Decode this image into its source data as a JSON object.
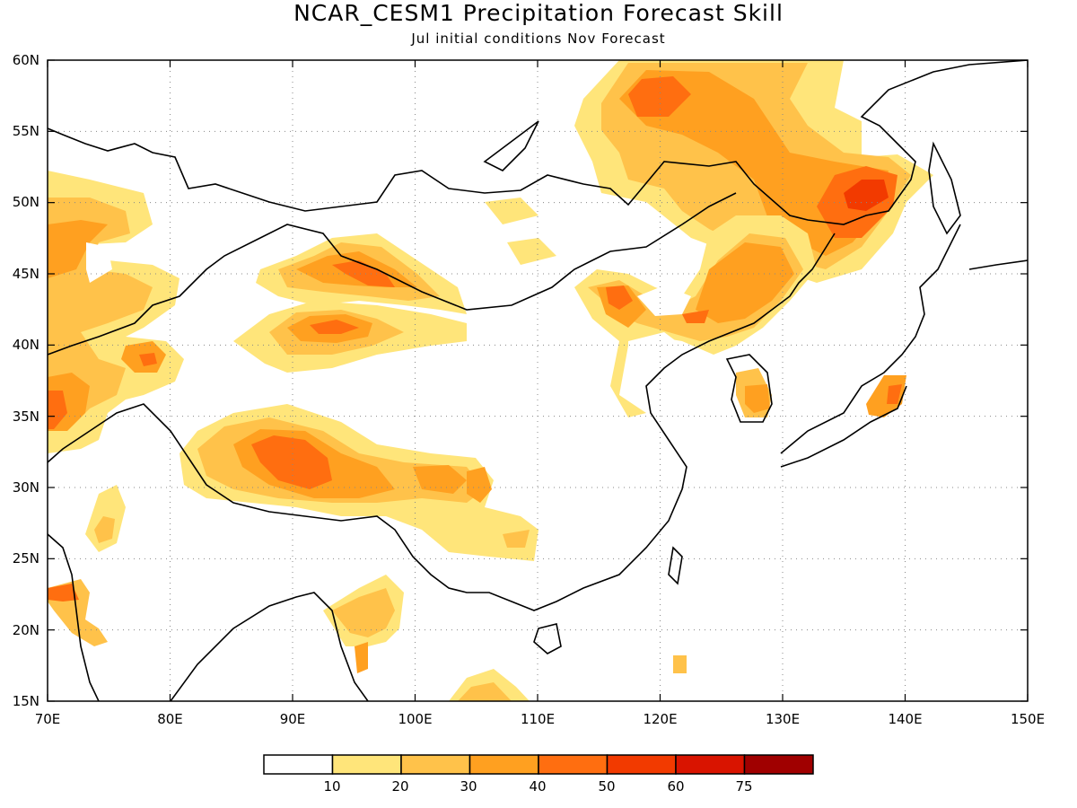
{
  "title": "NCAR_CESM1 Precipitation Forecast Skill",
  "subtitle": "Jul initial conditions  Nov Forecast",
  "map": {
    "lon_range": [
      70,
      150
    ],
    "lat_range": [
      15,
      60
    ],
    "lon_ticks": [
      "70E",
      "80E",
      "90E",
      "100E",
      "110E",
      "120E",
      "130E",
      "140E",
      "150E"
    ],
    "lat_ticks": [
      "15N",
      "20N",
      "25N",
      "30N",
      "35N",
      "40N",
      "45N",
      "50N",
      "55N",
      "60N"
    ],
    "grid": "dotted",
    "coastlines": true
  },
  "legend": {
    "labels": [
      "10",
      "20",
      "30",
      "40",
      "50",
      "60",
      "75"
    ],
    "colors": [
      "#ffffff",
      "#ffe57a",
      "#ffc24a",
      "#ffa020",
      "#ff6e10",
      "#f23a00",
      "#d91400",
      "#a00000"
    ]
  },
  "chart_data": {
    "type": "heatmap",
    "title": "NCAR_CESM1 Precipitation Forecast Skill",
    "subtitle": "Jul initial conditions  Nov Forecast",
    "xlabel": "",
    "ylabel": "",
    "xlim": [
      70,
      150
    ],
    "ylim": [
      15,
      60
    ],
    "levels": [
      10,
      20,
      30,
      40,
      50,
      60,
      75
    ],
    "skill_regions": [
      {
        "lon": 117,
        "lat": 57,
        "max_level": 50
      },
      {
        "lon": 137,
        "lat": 50,
        "max_level": 60
      },
      {
        "lon": 124,
        "lat": 45,
        "max_level": 50
      },
      {
        "lon": 116,
        "lat": 43,
        "max_level": 50
      },
      {
        "lon": 95,
        "lat": 45,
        "max_level": 50
      },
      {
        "lon": 92,
        "lat": 41,
        "max_level": 50
      },
      {
        "lon": 89,
        "lat": 31,
        "max_level": 50
      },
      {
        "lon": 79,
        "lat": 39,
        "max_level": 40
      },
      {
        "lon": 71,
        "lat": 35,
        "max_level": 50
      },
      {
        "lon": 73,
        "lat": 47,
        "max_level": 30
      },
      {
        "lon": 127,
        "lat": 36,
        "max_level": 40
      },
      {
        "lon": 138,
        "lat": 37,
        "max_level": 50
      },
      {
        "lon": 96,
        "lat": 21,
        "max_level": 30
      },
      {
        "lon": 105,
        "lat": 16,
        "max_level": 30
      },
      {
        "lon": 71,
        "lat": 22,
        "max_level": 50
      },
      {
        "lon": 104,
        "lat": 26,
        "max_level": 30
      }
    ]
  }
}
